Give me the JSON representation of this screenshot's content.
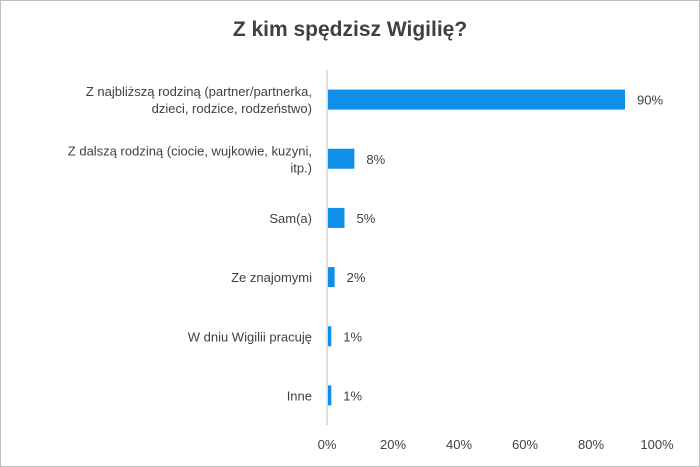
{
  "chart_data": {
    "type": "bar",
    "orientation": "horizontal",
    "title": "Z kim spędzisz Wigilię?",
    "categories": [
      [
        "Z najbliższą rodziną (partner/partnerka,",
        "dzieci, rodzice, rodzeństwo)"
      ],
      [
        "Z dalszą rodziną (ciocie, wujkowie, kuzyni,",
        "itp.)"
      ],
      [
        "Sam(a)"
      ],
      [
        "Ze znajomymi"
      ],
      [
        "W dniu Wigilii pracuję"
      ],
      [
        "Inne"
      ]
    ],
    "values": [
      90,
      8,
      5,
      2,
      1,
      1
    ],
    "value_labels": [
      "90%",
      "8%",
      "5%",
      "2%",
      "1%",
      "1%"
    ],
    "xlim": [
      0,
      100
    ],
    "x_ticks": [
      "0%",
      "20%",
      "40%",
      "60%",
      "80%",
      "100%"
    ],
    "grid": false,
    "legend": "none",
    "bar_color": "#0f8fe8"
  }
}
